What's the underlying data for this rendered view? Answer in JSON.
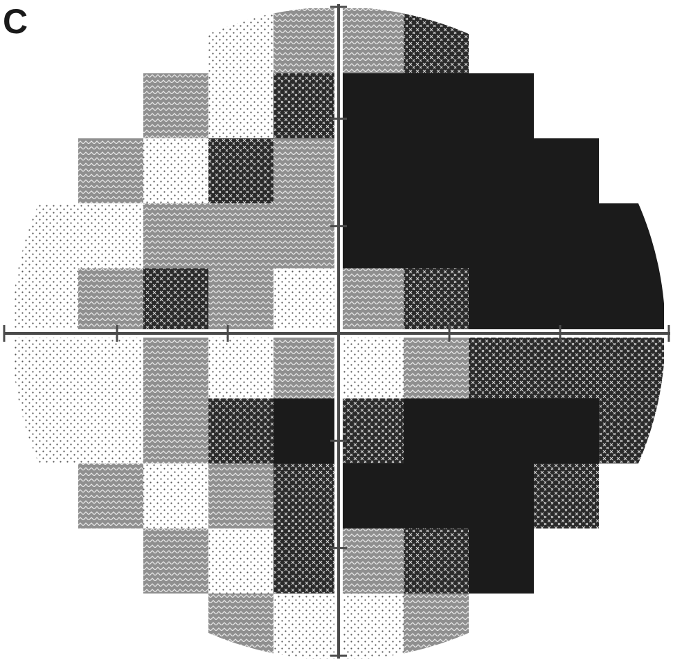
{
  "panel": {
    "label": "C"
  },
  "chart_data": {
    "type": "heatmap",
    "title": "",
    "xlabel": "",
    "ylabel": "",
    "grid": false,
    "legend": "none",
    "levels": [
      "normal",
      "mild",
      "moderate",
      "severe",
      "absolute"
    ],
    "level_colors": {
      "normal": "#ffffff",
      "mild": "#f4f4f4",
      "moderate": "#9a9a9a",
      "severe": "#3c3c3c",
      "absolute": "#1b1b1b"
    },
    "grid_size": 10,
    "rows": [
      [
        "-",
        "-",
        "-",
        "mild",
        "moderate",
        "moderate",
        "severe",
        "-",
        "-",
        "-"
      ],
      [
        "-",
        "-",
        "moderate",
        "mild",
        "severe",
        "absolute",
        "absolute",
        "absolute",
        "-",
        "-"
      ],
      [
        "-",
        "moderate",
        "mild",
        "severe",
        "moderate",
        "absolute",
        "absolute",
        "absolute",
        "absolute",
        "-"
      ],
      [
        "mild",
        "mild",
        "moderate",
        "moderate",
        "moderate",
        "absolute",
        "absolute",
        "absolute",
        "absolute",
        "absolute"
      ],
      [
        "mild",
        "moderate",
        "severe",
        "moderate",
        "mild",
        "moderate",
        "severe",
        "absolute",
        "absolute",
        "absolute"
      ],
      [
        "mild",
        "mild",
        "moderate",
        "mild",
        "moderate",
        "mild",
        "moderate",
        "severe",
        "severe",
        "severe"
      ],
      [
        "mild",
        "mild",
        "moderate",
        "severe",
        "absolute",
        "severe",
        "absolute",
        "absolute",
        "absolute",
        "severe"
      ],
      [
        "-",
        "moderate",
        "mild",
        "moderate",
        "severe",
        "absolute",
        "absolute",
        "absolute",
        "severe",
        "-"
      ],
      [
        "-",
        "-",
        "moderate",
        "mild",
        "severe",
        "moderate",
        "severe",
        "absolute",
        "-",
        "-"
      ],
      [
        "-",
        "-",
        "-",
        "moderate",
        "mild",
        "mild",
        "moderate",
        "-",
        "-",
        "-"
      ]
    ]
  }
}
